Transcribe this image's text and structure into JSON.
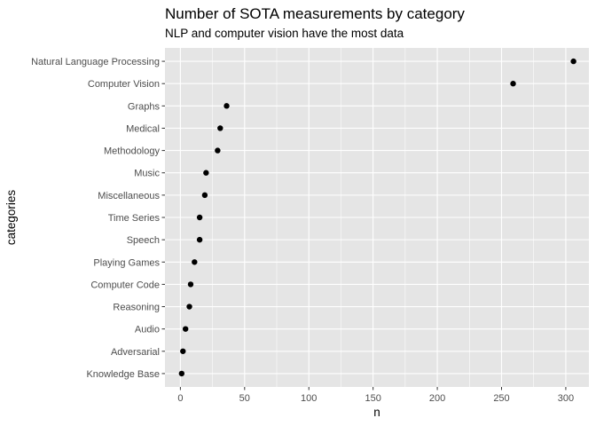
{
  "chart_data": {
    "type": "scatter",
    "title": "Number of SOTA measurements by category",
    "subtitle": "NLP and computer vision have the most data",
    "xlabel": "n",
    "ylabel": "categories",
    "xlim": [
      -12,
      318
    ],
    "xticks": [
      0,
      50,
      100,
      150,
      200,
      250,
      300
    ],
    "xtick_labels": [
      "0",
      "50",
      "100",
      "150",
      "200",
      "250",
      "300"
    ],
    "grid": true,
    "background": "#e5e5e5",
    "grid_color": "#ffffff",
    "point_color": "#000000",
    "categories": [
      "Natural Language Processing",
      "Computer Vision",
      "Graphs",
      "Medical",
      "Methodology",
      "Music",
      "Miscellaneous",
      "Time Series",
      "Speech",
      "Playing Games",
      "Computer Code",
      "Reasoning",
      "Audio",
      "Adversarial",
      "Knowledge Base"
    ],
    "values": [
      306,
      259,
      36,
      31,
      29,
      20,
      19,
      15,
      15,
      11,
      8,
      7,
      4,
      2,
      1
    ]
  }
}
